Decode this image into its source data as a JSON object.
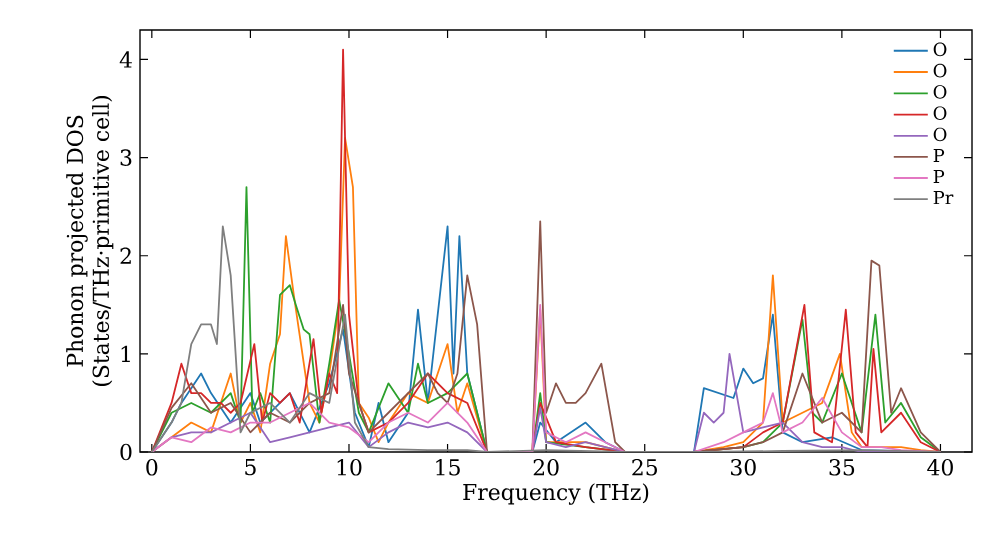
{
  "chart_data": {
    "type": "line",
    "xlabel": "Frequency (THz)",
    "ylabel": "Phonon projected DOS\n(States/THz·primitive cell)",
    "xlim": [
      -0.6,
      41.6
    ],
    "ylim": [
      0,
      4.3
    ],
    "xticks": [
      0,
      5,
      10,
      15,
      20,
      25,
      30,
      35,
      40
    ],
    "yticks": [
      0,
      1,
      2,
      3,
      4
    ],
    "grid": false,
    "legend": "top right",
    "marker": "none",
    "line_style": "solid",
    "series": [
      {
        "name": "O",
        "color": "#1f77b4",
        "x": [
          0,
          1,
          1.5,
          2.5,
          3,
          4,
          5,
          5.5,
          6.5,
          7,
          8,
          9,
          9.7,
          10.3,
          11,
          11.5,
          12,
          13,
          13.5,
          14,
          15,
          15.3,
          15.6,
          16,
          17,
          19.3,
          19.7,
          20.5,
          22,
          23,
          24,
          27.5,
          28,
          29.5,
          30,
          30.5,
          31,
          31.5,
          32,
          33,
          34.5,
          36,
          40
        ],
        "values": [
          0,
          0.3,
          0.5,
          0.8,
          0.6,
          0.3,
          0.6,
          0.3,
          0.5,
          0.6,
          0.2,
          0.7,
          1.25,
          0.4,
          0.05,
          0.5,
          0.1,
          0.4,
          1.45,
          0.5,
          2.3,
          0.8,
          2.2,
          0.8,
          0,
          0,
          0.3,
          0.1,
          0.3,
          0.1,
          0,
          0,
          0.65,
          0.55,
          0.85,
          0.7,
          0.75,
          1.4,
          0.2,
          0.1,
          0.15,
          0.02,
          0
        ]
      },
      {
        "name": "O",
        "color": "#ff7f0e",
        "x": [
          0,
          1,
          2,
          3,
          4,
          4.5,
          5,
          5.5,
          6,
          6.5,
          6.8,
          7.2,
          8,
          8.5,
          9,
          9.5,
          9.8,
          10.2,
          10.5,
          11,
          11.5,
          12,
          13,
          14,
          15,
          15.5,
          16,
          17,
          19.3,
          19.7,
          20,
          21,
          22,
          23,
          24,
          27.5,
          29,
          30,
          31,
          31.5,
          32,
          33,
          34,
          34.9,
          35.5,
          36,
          37,
          38,
          39,
          40
        ],
        "values": [
          0,
          0.15,
          0.3,
          0.2,
          0.8,
          0.3,
          0.5,
          0.2,
          0.9,
          1.2,
          2.2,
          1.6,
          0.5,
          0.3,
          0.8,
          1.5,
          3.2,
          2.7,
          0.5,
          0.35,
          0.1,
          0.3,
          0.6,
          0.5,
          1.1,
          0.4,
          0.7,
          0,
          0,
          1.45,
          0.1,
          0.1,
          0.1,
          0.05,
          0,
          0,
          0.05,
          0.1,
          0.3,
          1.8,
          0.3,
          0.4,
          0.5,
          1.0,
          0.2,
          0.05,
          0.05,
          0.05,
          0.02,
          0
        ]
      },
      {
        "name": "O",
        "color": "#2ca02c",
        "x": [
          0,
          1,
          2,
          3,
          4,
          4.5,
          4.8,
          5.1,
          5.5,
          6,
          6.5,
          7,
          7.3,
          7.7,
          8,
          8.5,
          9,
          9.5,
          10,
          10.5,
          11,
          12,
          13,
          13.5,
          14,
          15,
          16,
          17,
          19.3,
          19.7,
          20,
          22,
          24,
          27.5,
          30,
          31,
          32,
          33,
          33.5,
          34,
          35,
          36,
          36.7,
          37.2,
          38,
          39,
          40
        ],
        "values": [
          0,
          0.4,
          0.5,
          0.4,
          0.6,
          0.3,
          2.7,
          0.4,
          0.6,
          0.3,
          1.6,
          1.7,
          1.5,
          1.25,
          1.2,
          0.3,
          0.9,
          1.55,
          1.0,
          0.4,
          0.2,
          0.7,
          0.4,
          0.9,
          0.5,
          0.6,
          0.8,
          0,
          0,
          0.6,
          0.1,
          0.05,
          0,
          0,
          0.05,
          0.1,
          0.3,
          1.35,
          0.4,
          0.3,
          0.8,
          0.2,
          1.4,
          0.3,
          0.5,
          0.15,
          0
        ]
      },
      {
        "name": "O",
        "color": "#d62728",
        "x": [
          0,
          1,
          1.5,
          2,
          2.5,
          3,
          3.5,
          4,
          4.5,
          5.2,
          5.6,
          6,
          6.5,
          7,
          7.5,
          8.2,
          8.6,
          9,
          9.4,
          9.7,
          10,
          10.5,
          11,
          12,
          13,
          14,
          15,
          16,
          17,
          19.3,
          19.7,
          20.5,
          22,
          24,
          27.5,
          30,
          31,
          32,
          33.1,
          33.6,
          34.5,
          35.2,
          35.7,
          36.3,
          36.6,
          37,
          38,
          39,
          40
        ],
        "values": [
          0,
          0.5,
          0.9,
          0.6,
          0.6,
          0.5,
          0.5,
          0.4,
          0.5,
          1.1,
          0.3,
          0.6,
          0.5,
          0.6,
          0.3,
          1.15,
          0.4,
          0.8,
          0.6,
          4.1,
          1.4,
          0.5,
          0.2,
          0.3,
          0.5,
          0.8,
          0.6,
          0.5,
          0,
          0,
          0.5,
          0.1,
          0.05,
          0,
          0,
          0.05,
          0.2,
          0.3,
          1.5,
          0.2,
          0.1,
          1.45,
          0.2,
          0.05,
          1.05,
          0.2,
          0.4,
          0.1,
          0
        ]
      },
      {
        "name": "O",
        "color": "#9467bd",
        "x": [
          0,
          1,
          2,
          3,
          4,
          5,
          6,
          7,
          8,
          9,
          10,
          11,
          12,
          13,
          14,
          15,
          16,
          17,
          19.3,
          19.7,
          20,
          21,
          22,
          23,
          24,
          27.5,
          28,
          28.5,
          29,
          29.3,
          30,
          31,
          32,
          33,
          34,
          35,
          36,
          40
        ],
        "values": [
          0,
          0.15,
          0.2,
          0.2,
          0.3,
          0.4,
          0.1,
          0.15,
          0.2,
          0.25,
          0.3,
          0.05,
          0.2,
          0.3,
          0.25,
          0.3,
          0.2,
          0,
          0,
          0.45,
          0.1,
          0.05,
          0.1,
          0.05,
          0,
          0,
          0.4,
          0.3,
          0.4,
          1.0,
          0.2,
          0.25,
          0.3,
          0.1,
          0.05,
          0.05,
          0,
          0
        ]
      },
      {
        "name": "P",
        "color": "#8c564b",
        "x": [
          0,
          1,
          2,
          3,
          4,
          5,
          6,
          7,
          8,
          9,
          9.7,
          10,
          11,
          12,
          13,
          14,
          14.5,
          15,
          15.5,
          16,
          16.5,
          17,
          19.3,
          19.7,
          20,
          20.5,
          21,
          21.5,
          22,
          22.8,
          23.5,
          24,
          27.5,
          30,
          31,
          32,
          33,
          34,
          35,
          36,
          36.5,
          36.9,
          37.5,
          38,
          39,
          40
        ],
        "values": [
          0,
          0.45,
          0.7,
          0.4,
          0.5,
          0.2,
          0.4,
          0.3,
          0.5,
          0.6,
          1.5,
          0.8,
          0.2,
          0.4,
          0.6,
          0.8,
          0.6,
          0.5,
          0.8,
          1.8,
          1.3,
          0,
          0,
          2.35,
          0.4,
          0.7,
          0.5,
          0.5,
          0.6,
          0.9,
          0.1,
          0,
          0,
          0.05,
          0.1,
          0.2,
          0.8,
          0.3,
          0.4,
          0.2,
          1.95,
          1.9,
          0.4,
          0.65,
          0.2,
          0
        ]
      },
      {
        "name": "P",
        "color": "#e377c2",
        "x": [
          0,
          1,
          2,
          3,
          4,
          5,
          6,
          7,
          8,
          9,
          10,
          11,
          12,
          13,
          14,
          15,
          16,
          17,
          19.3,
          19.7,
          20,
          21,
          22,
          23,
          24,
          27.5,
          29,
          30,
          31,
          31.5,
          32,
          33,
          34,
          35,
          36,
          37,
          38,
          40
        ],
        "values": [
          0,
          0.15,
          0.1,
          0.25,
          0.2,
          0.3,
          0.3,
          0.4,
          0.5,
          0.3,
          0.25,
          0.1,
          0.3,
          0.4,
          0.3,
          0.5,
          0.3,
          0,
          0,
          1.5,
          0.2,
          0.1,
          0.2,
          0.1,
          0,
          0,
          0.1,
          0.2,
          0.3,
          0.6,
          0.2,
          0.3,
          0.55,
          0.2,
          0.05,
          0.05,
          0.02,
          0
        ]
      },
      {
        "name": "Pr",
        "color": "#7f7f7f",
        "x": [
          0,
          1,
          1.5,
          2,
          2.5,
          3,
          3.3,
          3.6,
          4,
          4.5,
          5,
          6,
          7,
          8,
          9,
          9.8,
          10.3,
          11,
          12,
          14,
          16,
          17,
          20,
          24,
          28,
          32,
          36,
          40
        ],
        "values": [
          0,
          0.3,
          0.5,
          1.1,
          1.3,
          1.3,
          1.1,
          2.3,
          1.8,
          0.2,
          0.4,
          0.5,
          0.3,
          0.6,
          0.5,
          1.4,
          0.3,
          0.05,
          0.03,
          0.02,
          0.02,
          0,
          0.02,
          0,
          0,
          0.01,
          0.02,
          0
        ]
      }
    ]
  }
}
